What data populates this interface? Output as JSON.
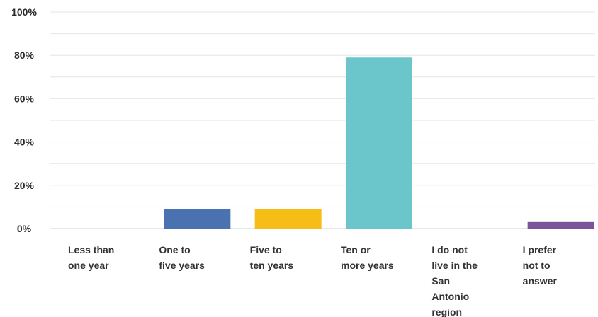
{
  "chart_data": {
    "type": "bar",
    "title": "",
    "xlabel": "",
    "ylabel": "",
    "ylim": [
      0,
      100
    ],
    "yticks": [
      0,
      20,
      40,
      60,
      80,
      100
    ],
    "ytick_labels": [
      "0%",
      "20%",
      "40%",
      "60%",
      "80%",
      "100%"
    ],
    "grid": true,
    "categories": [
      [
        "Less than",
        "one year"
      ],
      [
        "One to",
        "five years"
      ],
      [
        "Five to",
        "ten years"
      ],
      [
        "Ten or",
        "more years"
      ],
      [
        "I do not",
        "live in the",
        "San",
        "Antonio",
        "region"
      ],
      [
        "I prefer",
        "not to",
        "answer"
      ]
    ],
    "values": [
      0,
      9,
      9,
      79,
      0,
      3
    ],
    "colors": [
      "#4a72b0",
      "#4a72b0",
      "#f6bd16",
      "#6ac6cb",
      "#7a559a",
      "#7a559a"
    ]
  }
}
